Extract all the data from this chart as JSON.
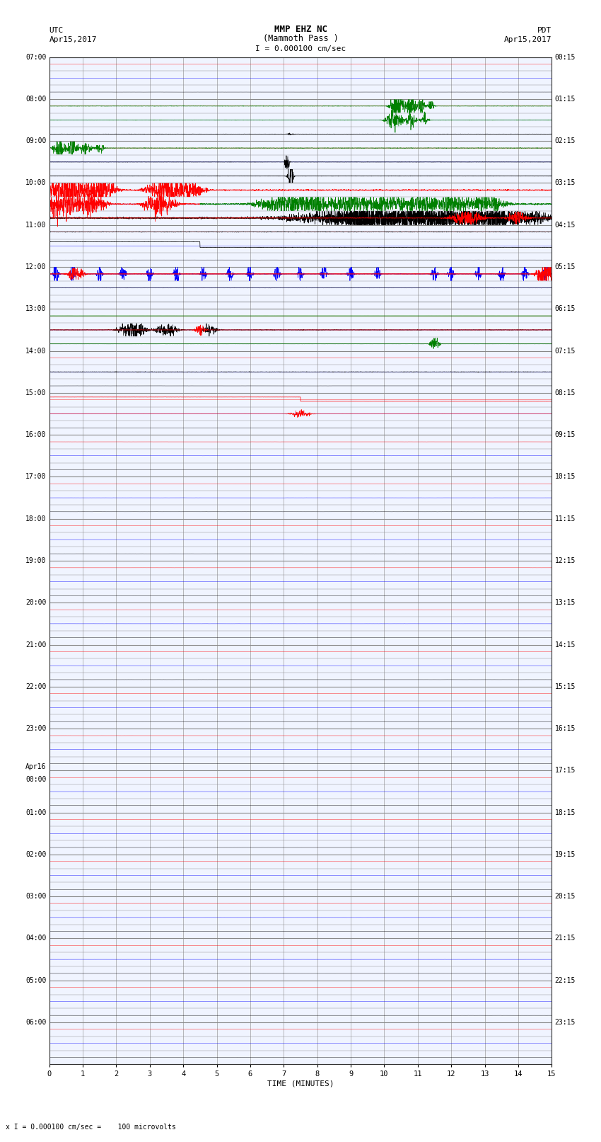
{
  "title_line1": "MMP EHZ NC",
  "title_line2": "(Mammoth Pass )",
  "title_line3": "I = 0.000100 cm/sec",
  "label_left_top1": "UTC",
  "label_left_top2": "Apr15,2017",
  "label_right_top1": "PDT",
  "label_right_top2": "Apr15,2017",
  "xlabel": "TIME (MINUTES)",
  "footer": "x I = 0.000100 cm/sec =    100 microvolts",
  "utc_times": [
    "07:00",
    "08:00",
    "09:00",
    "10:00",
    "11:00",
    "12:00",
    "13:00",
    "14:00",
    "15:00",
    "16:00",
    "17:00",
    "18:00",
    "19:00",
    "20:00",
    "21:00",
    "22:00",
    "23:00",
    "Apr16\n00:00",
    "01:00",
    "02:00",
    "03:00",
    "04:00",
    "05:00",
    "06:00"
  ],
  "pdt_times": [
    "00:15",
    "01:15",
    "02:15",
    "03:15",
    "04:15",
    "05:15",
    "06:15",
    "07:15",
    "08:15",
    "09:15",
    "10:15",
    "11:15",
    "12:15",
    "13:15",
    "14:15",
    "15:15",
    "16:15",
    "17:15",
    "18:15",
    "19:15",
    "20:15",
    "21:15",
    "22:15",
    "23:15"
  ],
  "n_hours": 24,
  "subrows_per_hour": 3,
  "x_tick_minutes": [
    0,
    1,
    2,
    3,
    4,
    5,
    6,
    7,
    8,
    9,
    10,
    11,
    12,
    13,
    14,
    15
  ],
  "bg_color": "#ffffff",
  "plot_bg": "#f0f4ff",
  "grid_color": "#888888",
  "font_family": "monospace",
  "title_fontsize": 9,
  "label_fontsize": 8,
  "tick_fontsize": 7.5,
  "trace_lw": 0.5,
  "noise_lw": 0.3
}
